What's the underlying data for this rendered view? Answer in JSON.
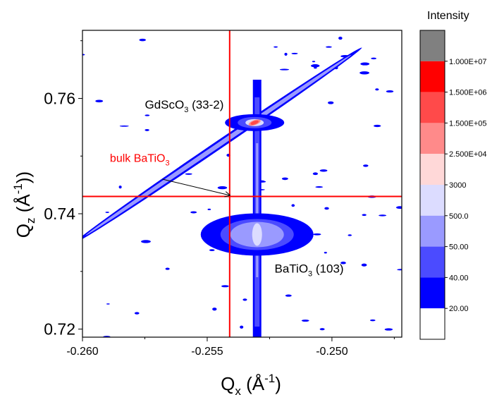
{
  "chart_data": {
    "type": "heatmap",
    "title": "",
    "xlabel": "Q",
    "xlabel_sub": "x",
    "xlabel_unit_open": " (Å",
    "xlabel_unit_sup": "-1",
    "xlabel_unit_close": ")",
    "ylabel": "Q",
    "ylabel_sub": "z",
    "ylabel_unit_open": " (Å",
    "ylabel_unit_sup": "-1",
    "ylabel_unit_close": "))",
    "xlim": [
      -0.26,
      -0.2472
    ],
    "ylim": [
      0.7186,
      0.7718
    ],
    "x_ticks": [
      -0.26,
      -0.255,
      -0.25
    ],
    "x_tick_labels": [
      "-0.260",
      "-0.255",
      "-0.250"
    ],
    "y_ticks": [
      0.72,
      0.74,
      0.76
    ],
    "y_tick_labels": [
      "0.72",
      "0.74",
      "0.76"
    ],
    "colorbar": {
      "title": "Intensity",
      "labels": [
        "1.000E+07",
        "1.500E+06",
        "1.500E+05",
        "2.500E+04",
        "3000",
        "500.0",
        "50.00",
        "40.00",
        "20.00"
      ],
      "colors_top_to_bottom": [
        "#808080",
        "#ff0000",
        "#ff4a4a",
        "#ff8a8a",
        "#ffd8d8",
        "#dcdcff",
        "#9a9aff",
        "#4b4bff",
        "#0000ff",
        "#ffffff"
      ]
    },
    "features": {
      "substrate_peak": {
        "x": -0.2531,
        "y": 0.7558
      },
      "film_peak": {
        "x": -0.253,
        "y": 0.7364
      },
      "reference_lines": {
        "x": -0.2541,
        "y": 0.743,
        "color": "#ff0000"
      },
      "analyzer_streak": {
        "start": [
          -0.2603,
          0.735
        ],
        "end": [
          -0.2488,
          0.7688
        ]
      }
    },
    "annotations": {
      "substrate": {
        "base": "GdScO",
        "sub": "3",
        "rest": " (33-2)",
        "x": -0.2575,
        "y": 0.7582
      },
      "bulk": {
        "base": "bulk BaTiO",
        "sub": "3",
        "rest": "",
        "x": -0.2589,
        "y": 0.749,
        "color": "#ff0000"
      },
      "film": {
        "base": "BaTiO",
        "sub": "3",
        "rest": " (103)",
        "x": -0.2523,
        "y": 0.7298
      },
      "arrow": {
        "from": [
          -0.2568,
          0.746
        ],
        "to": [
          -0.2541,
          0.7432
        ]
      }
    }
  }
}
